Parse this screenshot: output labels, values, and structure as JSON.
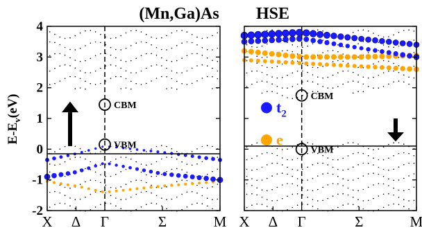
{
  "titles": {
    "left": "(Mn,Ga)As",
    "right": "HSE"
  },
  "chart_data": {
    "type": "scatter",
    "ylabel": "E-E",
    "ylabel_sub": "v",
    "ylabel_unit": "(eV)",
    "ylim": [
      -2,
      4
    ],
    "yticks": [
      "-2",
      "-1",
      "0",
      "1",
      "2",
      "3",
      "4"
    ],
    "k_labels": [
      "X",
      "Δ",
      "Γ",
      "Σ",
      "M"
    ],
    "k_positions": [
      0,
      0.5,
      1,
      2,
      3
    ],
    "colors": {
      "t2": "#1a1aff",
      "e": "#ffa500",
      "plain": "#000000",
      "ef_line": "#000000"
    },
    "panels": [
      {
        "spin": "up",
        "arrow": "up",
        "fermi_level": -0.15,
        "annotations": [
          {
            "label": "CBM",
            "k": 1,
            "E": 1.45
          },
          {
            "label": "VBM",
            "k": 1,
            "E": 0.15
          }
        ],
        "t2_bands": [
          {
            "E": [
              -0.35,
              -0.15,
              0.1,
              -0.1,
              -0.35
            ],
            "size": [
              3,
              2,
              1.5,
              2,
              3
            ]
          },
          {
            "E": [
              -0.9,
              -0.75,
              -0.45,
              -0.8,
              -1.0
            ],
            "size": [
              4,
              3,
              2,
              3,
              4
            ]
          }
        ],
        "e_bands": [
          {
            "E": [
              -1.05,
              -1.2,
              -1.4,
              -1.2,
              -1.05
            ],
            "size": [
              2,
              2,
              2,
              2,
              2
            ]
          }
        ]
      },
      {
        "spin": "down",
        "arrow": "down",
        "fermi_level": 0.1,
        "annotations": [
          {
            "label": "CBM",
            "k": 1,
            "E": 1.75
          },
          {
            "label": "VBM",
            "k": 1,
            "E": 0.0
          }
        ],
        "legend": [
          {
            "label": "t",
            "sub": "2",
            "color": "#1a1aff"
          },
          {
            "label": "e",
            "sub": "",
            "color": "#ffa500"
          }
        ],
        "t2_bands": [
          {
            "E": [
              3.7,
              3.75,
              3.8,
              3.6,
              3.4
            ],
            "size": [
              5,
              5,
              5,
              4,
              4
            ]
          },
          {
            "E": [
              3.5,
              3.55,
              3.6,
              3.3,
              3.0
            ],
            "size": [
              4,
              4,
              4,
              3,
              4
            ]
          }
        ],
        "e_bands": [
          {
            "E": [
              3.2,
              3.1,
              3.0,
              3.0,
              3.05
            ],
            "size": [
              4,
              4,
              4,
              4,
              4
            ]
          },
          {
            "E": [
              2.9,
              2.85,
              2.8,
              2.7,
              2.6
            ],
            "size": [
              3,
              3,
              3,
              3,
              4
            ]
          }
        ]
      }
    ]
  }
}
